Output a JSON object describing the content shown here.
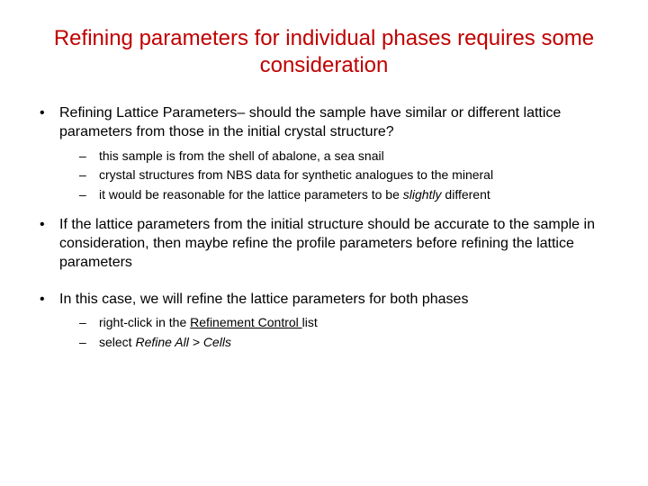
{
  "title_color": "#c00000",
  "title": "Refining parameters for individual phases requires some consideration",
  "bullets": [
    {
      "text": "Refining Lattice Parameters– should the sample have similar or different lattice parameters from those in the initial crystal structure?",
      "sub": [
        {
          "text": "this sample is from the shell of abalone, a sea snail"
        },
        {
          "text": "crystal structures from NBS data for synthetic analogues to the mineral"
        },
        {
          "prefix": "it would be reasonable for the lattice parameters to be ",
          "italic": "slightly",
          "suffix": " different"
        }
      ]
    },
    {
      "text": "If the lattice parameters from the initial structure should be accurate to the sample in consideration, then maybe refine the profile parameters before refining the lattice parameters"
    },
    {
      "text": "In this case, we will refine the lattice parameters for both phases",
      "sub": [
        {
          "prefix": "right-click in the ",
          "underline": "Refinement Control ",
          "suffix": "list"
        },
        {
          "prefix": "select ",
          "italic": "Refine All > Cells"
        }
      ]
    }
  ]
}
